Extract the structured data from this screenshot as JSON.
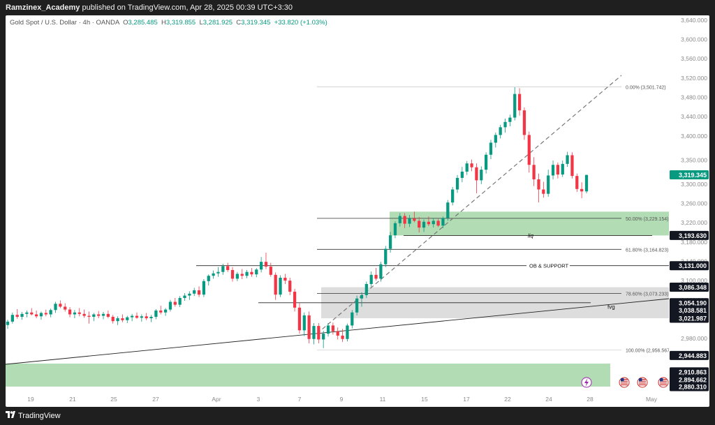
{
  "header": {
    "publisher": "Ramzinex_Academy",
    "published_text": "published on TradingView.com, Apr 28, 2025 00:39 UTC+3:30"
  },
  "legend": {
    "symbol": "Gold Spot / U.S. Dollar · 4h · OANDA",
    "open_key": "O",
    "open": "3,285.485",
    "high_key": "H",
    "high": "3,319.855",
    "low_key": "L",
    "low": "3,281.925",
    "close_key": "C",
    "close": "3,319.345",
    "change": "+33.820 (+1.03%)"
  },
  "footer": {
    "brand": "TradingView"
  },
  "colors": {
    "up": "#089981",
    "down": "#f23645",
    "zone_green": "#a5d6a7",
    "zone_grey": "#d9d9d9",
    "axis_text": "#8a8a8a",
    "line": "#222222"
  },
  "chart_data": {
    "type": "candlestick",
    "symbol": "XAUUSD",
    "timeframe": "4h",
    "ylim": [
      2860,
      3650
    ],
    "y_ticks": [
      2980,
      3020,
      3060,
      3100,
      3140,
      3180,
      3220,
      3260,
      3300,
      3350,
      3400,
      3440,
      3480,
      3520,
      3560,
      3600,
      3640
    ],
    "y_tick_labels": [
      "2,980.000",
      "3,020.000",
      "3,060.000",
      "3,100.000",
      "3,140.000",
      "3,180.000",
      "3,220.000",
      "3,260.000",
      "3,300.000",
      "3,350.000",
      "3,400.000",
      "3,440.000",
      "3,480.000",
      "3,520.000",
      "3,560.000",
      "3,600.000",
      "3,640.000"
    ],
    "x_ticks": [
      "19",
      "21",
      "25",
      "27",
      "Apr",
      "3",
      "7",
      "9",
      "11",
      "15",
      "17",
      "22",
      "24",
      "28",
      "May"
    ],
    "price_tags": [
      {
        "label": "3,319.345",
        "value": 3319.345,
        "style": "current"
      },
      {
        "label": "3,193.630",
        "value": 3193.63,
        "style": "dark"
      },
      {
        "label": "3,131.000",
        "value": 3131.0,
        "style": "dark"
      },
      {
        "label": "3,086.348",
        "value": 3086.348,
        "style": "dark"
      },
      {
        "label": "3,054.190",
        "value": 3054.19,
        "style": "dark"
      },
      {
        "label": "3,038.581",
        "value": 3038.581,
        "style": "dark"
      },
      {
        "label": "3,021.987",
        "value": 3021.987,
        "style": "dark"
      },
      {
        "label": "2,944.883",
        "value": 2944.883,
        "style": "dark"
      },
      {
        "label": "2,910.863",
        "value": 2910.863,
        "style": "dark"
      },
      {
        "label": "2,894.662",
        "value": 2894.662,
        "style": "dark"
      },
      {
        "label": "2,880.310",
        "value": 2880.31,
        "style": "dark"
      }
    ],
    "fib_levels": [
      {
        "label": "0.00% (3,501.742)",
        "value": 3501.742
      },
      {
        "label": "50.00% (3,229.154)",
        "value": 3229.154
      },
      {
        "label": "61.80% (3,164.823)",
        "value": 3164.823
      },
      {
        "label": "78.60% (3,073.233)",
        "value": 3073.233
      },
      {
        "label": "100.00% (2,956.567)",
        "value": 2956.567
      }
    ],
    "annotations": [
      {
        "text": "liq",
        "value": 3193.63
      },
      {
        "text": "OB & SUPPORT",
        "value": 3131.0
      },
      {
        "text": "fvg",
        "value": 3046
      }
    ],
    "zones": [
      {
        "kind": "supply/demand",
        "low": 3193.63,
        "high": 3243,
        "color": "green"
      },
      {
        "kind": "fvg",
        "low": 3021.987,
        "high": 3086.348,
        "color": "grey"
      },
      {
        "kind": "demand",
        "low": 2880.31,
        "high": 2928,
        "color": "green"
      }
    ],
    "candles": [
      [
        3008,
        3019,
        3000,
        3015
      ],
      [
        3015,
        3034,
        3011,
        3029
      ],
      [
        3029,
        3041,
        3021,
        3025
      ],
      [
        3025,
        3035,
        3019,
        3031
      ],
      [
        3031,
        3038,
        3024,
        3034
      ],
      [
        3034,
        3043,
        3028,
        3030
      ],
      [
        3030,
        3038,
        3022,
        3026
      ],
      [
        3026,
        3036,
        3019,
        3033
      ],
      [
        3033,
        3040,
        3026,
        3030
      ],
      [
        3030,
        3042,
        3024,
        3039
      ],
      [
        3039,
        3056,
        3033,
        3052
      ],
      [
        3052,
        3059,
        3043,
        3046
      ],
      [
        3046,
        3053,
        3036,
        3040
      ],
      [
        3040,
        3045,
        3024,
        3030
      ],
      [
        3030,
        3039,
        3022,
        3034
      ],
      [
        3034,
        3043,
        3026,
        3031
      ],
      [
        3031,
        3040,
        3023,
        3027
      ],
      [
        3027,
        3036,
        3011,
        3025
      ],
      [
        3025,
        3033,
        3016,
        3030
      ],
      [
        3030,
        3037,
        3022,
        3027
      ],
      [
        3027,
        3035,
        3020,
        3031
      ],
      [
        3031,
        3038,
        3022,
        3025
      ],
      [
        3025,
        3029,
        3011,
        3016
      ],
      [
        3016,
        3026,
        3008,
        3022
      ],
      [
        3022,
        3030,
        3014,
        3018
      ],
      [
        3018,
        3027,
        3012,
        3024
      ],
      [
        3024,
        3031,
        3016,
        3027
      ],
      [
        3027,
        3034,
        3021,
        3023
      ],
      [
        3023,
        3030,
        3015,
        3026
      ],
      [
        3026,
        3033,
        3018,
        3022
      ],
      [
        3022,
        3029,
        3014,
        3025
      ],
      [
        3025,
        3041,
        3020,
        3038
      ],
      [
        3038,
        3048,
        3030,
        3034
      ],
      [
        3034,
        3043,
        3027,
        3040
      ],
      [
        3040,
        3060,
        3036,
        3056
      ],
      [
        3056,
        3064,
        3046,
        3050
      ],
      [
        3050,
        3068,
        3045,
        3064
      ],
      [
        3064,
        3074,
        3058,
        3069
      ],
      [
        3069,
        3078,
        3060,
        3073
      ],
      [
        3073,
        3085,
        3068,
        3080
      ],
      [
        3080,
        3088,
        3066,
        3071
      ],
      [
        3071,
        3103,
        3066,
        3099
      ],
      [
        3099,
        3113,
        3090,
        3110
      ],
      [
        3110,
        3121,
        3104,
        3115
      ],
      [
        3115,
        3128,
        3108,
        3118
      ],
      [
        3118,
        3135,
        3112,
        3130
      ],
      [
        3130,
        3137,
        3118,
        3122
      ],
      [
        3122,
        3128,
        3098,
        3104
      ],
      [
        3104,
        3118,
        3099,
        3114
      ],
      [
        3114,
        3124,
        3103,
        3110
      ],
      [
        3110,
        3122,
        3105,
        3118
      ],
      [
        3118,
        3126,
        3108,
        3113
      ],
      [
        3113,
        3126,
        3107,
        3123
      ],
      [
        3123,
        3149,
        3117,
        3139
      ],
      [
        3139,
        3158,
        3124,
        3129
      ],
      [
        3129,
        3137,
        3108,
        3112
      ],
      [
        3112,
        3117,
        3060,
        3071
      ],
      [
        3071,
        3111,
        3066,
        3106
      ],
      [
        3106,
        3114,
        3093,
        3100
      ],
      [
        3100,
        3106,
        3070,
        3077
      ],
      [
        3077,
        3083,
        3036,
        3044
      ],
      [
        3044,
        3053,
        2990,
        2997
      ],
      [
        2997,
        3034,
        2985,
        3028
      ],
      [
        3028,
        3036,
        2970,
        2979
      ],
      [
        2979,
        3012,
        2968,
        3006
      ],
      [
        3006,
        3012,
        2970,
        2978
      ],
      [
        2978,
        2996,
        2960,
        2990
      ],
      [
        2990,
        3012,
        2984,
        3007
      ],
      [
        3007,
        3013,
        2988,
        2995
      ],
      [
        2995,
        3003,
        2978,
        2986
      ],
      [
        2986,
        3000,
        2973,
        2979
      ],
      [
        2979,
        3011,
        2974,
        3007
      ],
      [
        3007,
        3039,
        3001,
        3034
      ],
      [
        3034,
        3069,
        3028,
        3063
      ],
      [
        3063,
        3076,
        3046,
        3070
      ],
      [
        3070,
        3098,
        3064,
        3093
      ],
      [
        3093,
        3119,
        3087,
        3112
      ],
      [
        3112,
        3126,
        3100,
        3104
      ],
      [
        3104,
        3139,
        3098,
        3134
      ],
      [
        3134,
        3172,
        3128,
        3166
      ],
      [
        3166,
        3201,
        3158,
        3194
      ],
      [
        3194,
        3223,
        3188,
        3219
      ],
      [
        3219,
        3240,
        3212,
        3234
      ],
      [
        3234,
        3240,
        3209,
        3218
      ],
      [
        3218,
        3236,
        3211,
        3229
      ],
      [
        3229,
        3243,
        3221,
        3224
      ],
      [
        3224,
        3232,
        3200,
        3210
      ],
      [
        3210,
        3227,
        3201,
        3222
      ],
      [
        3222,
        3233,
        3213,
        3217
      ],
      [
        3217,
        3230,
        3210,
        3224
      ],
      [
        3224,
        3228,
        3211,
        3214
      ],
      [
        3214,
        3233,
        3209,
        3230
      ],
      [
        3230,
        3267,
        3224,
        3262
      ],
      [
        3262,
        3294,
        3256,
        3289
      ],
      [
        3289,
        3319,
        3282,
        3313
      ],
      [
        3313,
        3336,
        3304,
        3326
      ],
      [
        3326,
        3348,
        3319,
        3343
      ],
      [
        3343,
        3351,
        3327,
        3335
      ],
      [
        3335,
        3343,
        3281,
        3308
      ],
      [
        3308,
        3337,
        3300,
        3330
      ],
      [
        3330,
        3366,
        3322,
        3361
      ],
      [
        3361,
        3392,
        3352,
        3386
      ],
      [
        3386,
        3407,
        3376,
        3402
      ],
      [
        3402,
        3423,
        3395,
        3418
      ],
      [
        3418,
        3436,
        3407,
        3429
      ],
      [
        3429,
        3444,
        3420,
        3438
      ],
      [
        3438,
        3501,
        3432,
        3487
      ],
      [
        3487,
        3499,
        3442,
        3453
      ],
      [
        3453,
        3459,
        3392,
        3402
      ],
      [
        3402,
        3409,
        3324,
        3340
      ],
      [
        3340,
        3356,
        3296,
        3310
      ],
      [
        3310,
        3322,
        3262,
        3289
      ],
      [
        3289,
        3305,
        3272,
        3280
      ],
      [
        3280,
        3330,
        3274,
        3318
      ],
      [
        3318,
        3349,
        3310,
        3340
      ],
      [
        3340,
        3345,
        3312,
        3320
      ],
      [
        3320,
        3349,
        3315,
        3342
      ],
      [
        3342,
        3367,
        3336,
        3360
      ],
      [
        3360,
        3366,
        3312,
        3317
      ],
      [
        3317,
        3322,
        3284,
        3290
      ],
      [
        3290,
        3304,
        3271,
        3285
      ],
      [
        3285,
        3320,
        3281,
        3319
      ]
    ]
  }
}
